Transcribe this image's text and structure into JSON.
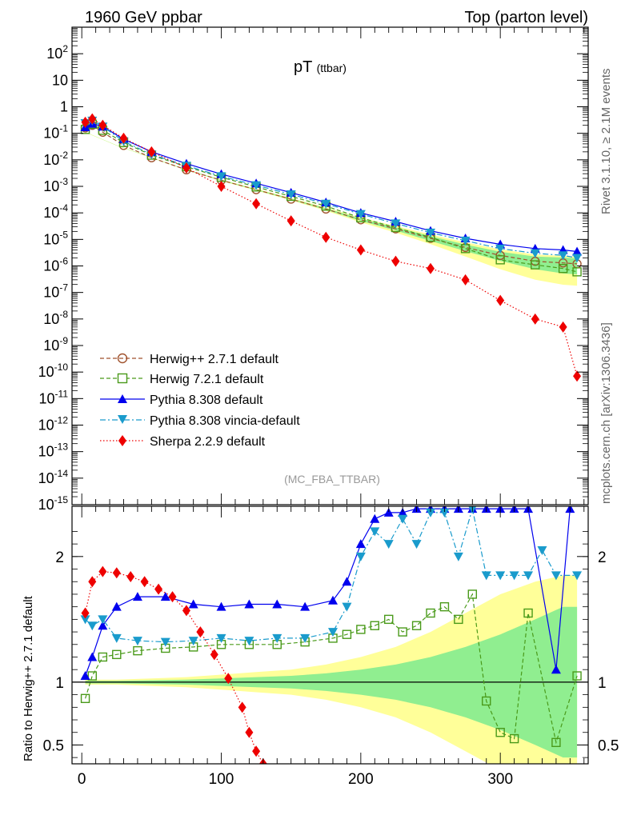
{
  "header": {
    "left": "1960 GeV ppbar",
    "right": "Top (parton level)"
  },
  "side_labels": {
    "top": "Rivet 3.1.10, ≥ 2.1M events",
    "bottom": "mcplots.cern.ch [arXiv:1306.3436]"
  },
  "colors": {
    "herwigpp": "#a0522d",
    "herwig7": "#4a9a1a",
    "pythia": "#0000ee",
    "vincia": "#1a9bcc",
    "sherpa": "#ee0000",
    "band_inner": "#90ee90",
    "band_outer": "#ffff99"
  },
  "chart_data": [
    {
      "type": "scatter",
      "title": "pT",
      "title_sub": "(ttbar)",
      "analysis_tag": "(MC_FBA_TTBAR)",
      "yscale": "log",
      "ylim": [
        1e-15,
        1000
      ],
      "xlim": [
        -7,
        363
      ],
      "y_tick_labels": [
        "10^{2}",
        "10",
        "1",
        "10^{-1}",
        "10^{-2}",
        "10^{-3}",
        "10^{-4}",
        "10^{-5}",
        "10^{-6}",
        "10^{-7}",
        "10^{-8}",
        "10^{-9}",
        "10^{-10}",
        "10^{-11}",
        "10^{-12}",
        "10^{-13}",
        "10^{-14}",
        "10^{-15}"
      ],
      "legend_position": "bottom-left",
      "series": [
        {
          "name": "Herwig++ 2.7.1 default",
          "key": "herwigpp",
          "marker": "open-circle",
          "line": "dashed",
          "x": [
            2.5,
            7.5,
            15,
            30,
            50,
            75,
            100,
            125,
            150,
            175,
            200,
            225,
            250,
            275,
            300,
            325,
            345,
            355
          ],
          "y": [
            0.16,
            0.2,
            0.11,
            0.035,
            0.012,
            0.0042,
            0.0017,
            0.00075,
            0.00033,
            0.00014,
            5.5e-05,
            2.5e-05,
            1.1e-05,
            5e-06,
            2.5e-06,
            1.5e-06,
            1.3e-06,
            1.2e-06
          ]
        },
        {
          "name": "Herwig 7.2.1 default",
          "key": "herwig7",
          "marker": "open-square",
          "line": "dashed",
          "x": [
            2.5,
            7.5,
            15,
            30,
            50,
            75,
            100,
            125,
            150,
            175,
            200,
            225,
            250,
            275,
            300,
            325,
            345,
            355
          ],
          "y": [
            0.14,
            0.22,
            0.13,
            0.045,
            0.015,
            0.0055,
            0.0022,
            0.00095,
            0.00042,
            0.00018,
            6.5e-05,
            2.8e-05,
            1.2e-05,
            4.5e-06,
            1.7e-06,
            1.1e-06,
            8e-07,
            6e-07
          ]
        },
        {
          "name": "Pythia 8.308 default",
          "key": "pythia",
          "marker": "filled-triangle-up",
          "line": "solid",
          "x": [
            2.5,
            7.5,
            15,
            30,
            50,
            75,
            100,
            125,
            150,
            175,
            200,
            225,
            250,
            275,
            300,
            325,
            345,
            355
          ],
          "y": [
            0.17,
            0.23,
            0.18,
            0.06,
            0.02,
            0.0072,
            0.0029,
            0.0013,
            0.00058,
            0.00025,
            0.0001,
            4.7e-05,
            2.1e-05,
            1.1e-05,
            6.5e-06,
            4.5e-06,
            4e-06,
            3.5e-06
          ]
        },
        {
          "name": "Pythia 8.308 vincia-default",
          "key": "vincia",
          "marker": "filled-triangle-down",
          "line": "dashdot",
          "x": [
            2.5,
            7.5,
            15,
            30,
            50,
            75,
            100,
            125,
            150,
            175,
            200,
            225,
            250,
            275,
            300,
            325,
            345,
            355
          ],
          "y": [
            0.24,
            0.3,
            0.18,
            0.05,
            0.016,
            0.006,
            0.0024,
            0.0011,
            0.0005,
            0.00022,
            9e-05,
            4e-05,
            1.8e-05,
            9e-06,
            4.5e-06,
            3e-06,
            2.5e-06,
            2e-06
          ]
        },
        {
          "name": "Sherpa 2.2.9 default",
          "key": "sherpa",
          "marker": "filled-diamond",
          "line": "dotted",
          "x": [
            2.5,
            7.5,
            15,
            30,
            50,
            75,
            100,
            125,
            150,
            175,
            200,
            225,
            250,
            275,
            300,
            325,
            345,
            355
          ],
          "y": [
            0.26,
            0.35,
            0.2,
            0.065,
            0.02,
            0.005,
            0.001,
            0.00022,
            5e-05,
            1.2e-05,
            4e-06,
            1.5e-06,
            8e-07,
            3e-07,
            5e-08,
            1e-08,
            5e-09,
            7e-11
          ]
        }
      ]
    },
    {
      "type": "scatter",
      "ylabel": "Ratio to Herwig++ 2.7.1 default",
      "ylim": [
        0.35,
        2.4
      ],
      "xlim": [
        -7,
        363
      ],
      "x_ticks": [
        0,
        100,
        200,
        300
      ],
      "y_ticks": [
        0.5,
        1,
        2
      ],
      "reference": 1,
      "band": {
        "x": [
          2.5,
          25,
          50,
          75,
          100,
          125,
          150,
          175,
          200,
          225,
          250,
          275,
          300,
          325,
          345,
          355
        ],
        "inner": [
          0.01,
          0.01,
          0.015,
          0.02,
          0.03,
          0.04,
          0.05,
          0.07,
          0.1,
          0.14,
          0.2,
          0.28,
          0.38,
          0.5,
          0.6,
          0.6
        ],
        "outer": [
          0.02,
          0.02,
          0.03,
          0.04,
          0.06,
          0.08,
          0.1,
          0.14,
          0.2,
          0.28,
          0.4,
          0.55,
          0.7,
          0.8,
          0.85,
          0.85
        ]
      },
      "series": [
        {
          "name": "Herwig 7.2.1 default",
          "key": "herwig7",
          "marker": "open-square",
          "line": "dashed",
          "x": [
            2.5,
            7.5,
            15,
            25,
            40,
            60,
            80,
            100,
            120,
            140,
            160,
            180,
            190,
            200,
            210,
            220,
            230,
            240,
            250,
            260,
            270,
            280,
            290,
            300,
            310,
            320,
            340,
            355
          ],
          "y": [
            0.87,
            1.05,
            1.2,
            1.22,
            1.25,
            1.27,
            1.28,
            1.3,
            1.3,
            1.3,
            1.32,
            1.35,
            1.38,
            1.42,
            1.45,
            1.5,
            1.4,
            1.45,
            1.55,
            1.6,
            1.5,
            1.7,
            0.85,
            0.6,
            0.55,
            1.55,
            0.52,
            1.05
          ]
        },
        {
          "name": "Pythia 8.308 default",
          "key": "pythia",
          "marker": "filled-triangle-up",
          "line": "solid",
          "x": [
            2.5,
            7.5,
            15,
            25,
            40,
            60,
            80,
            100,
            120,
            140,
            160,
            180,
            190,
            200,
            210,
            220,
            230,
            240,
            250,
            260,
            270,
            280,
            290,
            300,
            310,
            320,
            340,
            350
          ],
          "y": [
            1.05,
            1.2,
            1.45,
            1.6,
            1.68,
            1.68,
            1.62,
            1.6,
            1.62,
            1.62,
            1.6,
            1.65,
            1.8,
            2.1,
            2.3,
            2.35,
            2.35,
            2.38,
            2.38,
            2.38,
            2.38,
            2.38,
            2.38,
            2.38,
            2.38,
            2.38,
            1.1,
            2.38
          ]
        },
        {
          "name": "Pythia 8.308 vincia-default",
          "key": "vincia",
          "marker": "filled-triangle-down",
          "line": "dashdot",
          "x": [
            2.5,
            7.5,
            15,
            25,
            40,
            60,
            80,
            100,
            120,
            140,
            160,
            180,
            190,
            200,
            210,
            220,
            230,
            240,
            250,
            260,
            270,
            280,
            290,
            300,
            310,
            320,
            330,
            340,
            355
          ],
          "y": [
            1.5,
            1.45,
            1.5,
            1.35,
            1.33,
            1.32,
            1.33,
            1.35,
            1.33,
            1.35,
            1.35,
            1.4,
            1.6,
            2.0,
            2.2,
            2.1,
            2.3,
            2.1,
            2.35,
            2.35,
            2.0,
            2.38,
            1.85,
            1.85,
            1.85,
            1.85,
            2.05,
            1.85,
            1.85
          ]
        },
        {
          "name": "Sherpa 2.2.9 default",
          "key": "sherpa",
          "marker": "filled-diamond",
          "line": "dotted",
          "x": [
            2.5,
            7.5,
            15,
            25,
            35,
            45,
            55,
            65,
            75,
            85,
            95,
            105,
            115,
            120,
            125,
            130
          ],
          "y": [
            1.55,
            1.8,
            1.88,
            1.87,
            1.84,
            1.8,
            1.74,
            1.68,
            1.57,
            1.4,
            1.22,
            1.03,
            0.8,
            0.6,
            0.45,
            0.35
          ]
        }
      ]
    }
  ]
}
